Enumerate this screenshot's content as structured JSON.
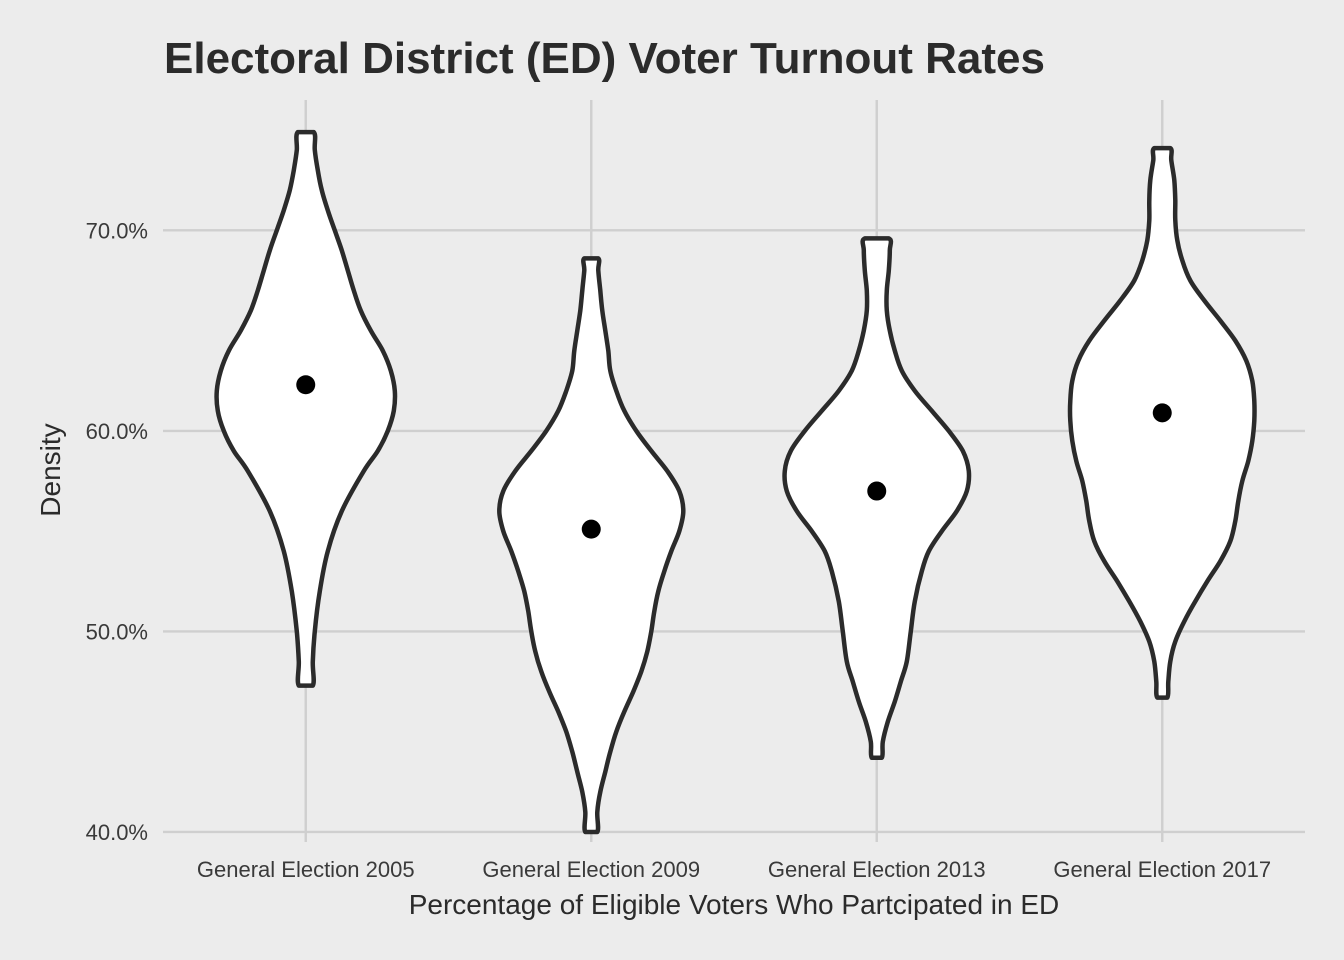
{
  "chart_data": {
    "type": "violin",
    "title": "Electoral District (ED) Voter Turnout Rates",
    "xlabel": "Percentage of Eligible Voters Who Partcipated in ED",
    "ylabel": "Density",
    "ylim": [
      39.5,
      76.5
    ],
    "y_ticks": [
      40,
      50,
      60,
      70
    ],
    "y_tick_labels": [
      "40.0%",
      "50.0%",
      "60.0%",
      "70.0%"
    ],
    "grid": true,
    "categories": [
      "General Election 2005",
      "General Election 2009",
      "General Election 2013",
      "General Election 2017"
    ],
    "violins": [
      {
        "category": "General Election 2005",
        "min": 47.3,
        "max": 74.9,
        "point": 62.3,
        "profile": [
          [
            47.3,
            0.07
          ],
          [
            48.5,
            0.07
          ],
          [
            50,
            0.09
          ],
          [
            52,
            0.14
          ],
          [
            54,
            0.22
          ],
          [
            56,
            0.36
          ],
          [
            58,
            0.58
          ],
          [
            59,
            0.72
          ],
          [
            60,
            0.82
          ],
          [
            61,
            0.88
          ],
          [
            62,
            0.89
          ],
          [
            63,
            0.85
          ],
          [
            64,
            0.77
          ],
          [
            65,
            0.65
          ],
          [
            66,
            0.55
          ],
          [
            67,
            0.48
          ],
          [
            68,
            0.42
          ],
          [
            69,
            0.36
          ],
          [
            70,
            0.29
          ],
          [
            71,
            0.22
          ],
          [
            72,
            0.16
          ],
          [
            73,
            0.12
          ],
          [
            74,
            0.09
          ],
          [
            74.9,
            0.08
          ]
        ]
      },
      {
        "category": "General Election 2009",
        "min": 40.0,
        "max": 68.6,
        "point": 55.1,
        "profile": [
          [
            40,
            0.06
          ],
          [
            41,
            0.06
          ],
          [
            42,
            0.09
          ],
          [
            43,
            0.14
          ],
          [
            44,
            0.19
          ],
          [
            45,
            0.25
          ],
          [
            46,
            0.33
          ],
          [
            47,
            0.42
          ],
          [
            48,
            0.5
          ],
          [
            49,
            0.56
          ],
          [
            50,
            0.6
          ],
          [
            51,
            0.63
          ],
          [
            52,
            0.67
          ],
          [
            53,
            0.73
          ],
          [
            54,
            0.8
          ],
          [
            55,
            0.88
          ],
          [
            56,
            0.92
          ],
          [
            57,
            0.88
          ],
          [
            58,
            0.76
          ],
          [
            59,
            0.6
          ],
          [
            60,
            0.45
          ],
          [
            61,
            0.33
          ],
          [
            62,
            0.25
          ],
          [
            63,
            0.19
          ],
          [
            64,
            0.17
          ],
          [
            65,
            0.14
          ],
          [
            66,
            0.11
          ],
          [
            67,
            0.09
          ],
          [
            68,
            0.07
          ],
          [
            68.6,
            0.07
          ]
        ]
      },
      {
        "category": "General Election 2013",
        "min": 43.7,
        "max": 69.6,
        "point": 57.0,
        "profile": [
          [
            43.7,
            0.05
          ],
          [
            44.5,
            0.06
          ],
          [
            45.5,
            0.11
          ],
          [
            46.5,
            0.18
          ],
          [
            47.5,
            0.24
          ],
          [
            48.5,
            0.3
          ],
          [
            50,
            0.34
          ],
          [
            51.5,
            0.38
          ],
          [
            53,
            0.45
          ],
          [
            54,
            0.52
          ],
          [
            55,
            0.65
          ],
          [
            56,
            0.8
          ],
          [
            57,
            0.9
          ],
          [
            58,
            0.92
          ],
          [
            59,
            0.86
          ],
          [
            60,
            0.72
          ],
          [
            61,
            0.55
          ],
          [
            62,
            0.38
          ],
          [
            63,
            0.25
          ],
          [
            64,
            0.18
          ],
          [
            65,
            0.13
          ],
          [
            66,
            0.1
          ],
          [
            67,
            0.1
          ],
          [
            68,
            0.12
          ],
          [
            69,
            0.13
          ],
          [
            69.6,
            0.12
          ]
        ]
      },
      {
        "category": "General Election 2017",
        "min": 46.7,
        "max": 74.1,
        "point": 60.9,
        "profile": [
          [
            46.7,
            0.05
          ],
          [
            47.5,
            0.06
          ],
          [
            48.5,
            0.08
          ],
          [
            49.5,
            0.13
          ],
          [
            50.5,
            0.22
          ],
          [
            51.5,
            0.33
          ],
          [
            52.5,
            0.45
          ],
          [
            53.5,
            0.58
          ],
          [
            54.5,
            0.68
          ],
          [
            55.5,
            0.73
          ],
          [
            56.5,
            0.76
          ],
          [
            57.5,
            0.8
          ],
          [
            58.5,
            0.86
          ],
          [
            59.5,
            0.9
          ],
          [
            60.5,
            0.92
          ],
          [
            61.5,
            0.92
          ],
          [
            62.5,
            0.9
          ],
          [
            63.5,
            0.84
          ],
          [
            64.5,
            0.73
          ],
          [
            65.5,
            0.58
          ],
          [
            66.5,
            0.42
          ],
          [
            67.5,
            0.28
          ],
          [
            68.5,
            0.2
          ],
          [
            69.5,
            0.15
          ],
          [
            70.5,
            0.13
          ],
          [
            71.5,
            0.13
          ],
          [
            72.5,
            0.12
          ],
          [
            73.5,
            0.09
          ],
          [
            74.1,
            0.08
          ]
        ]
      }
    ]
  }
}
